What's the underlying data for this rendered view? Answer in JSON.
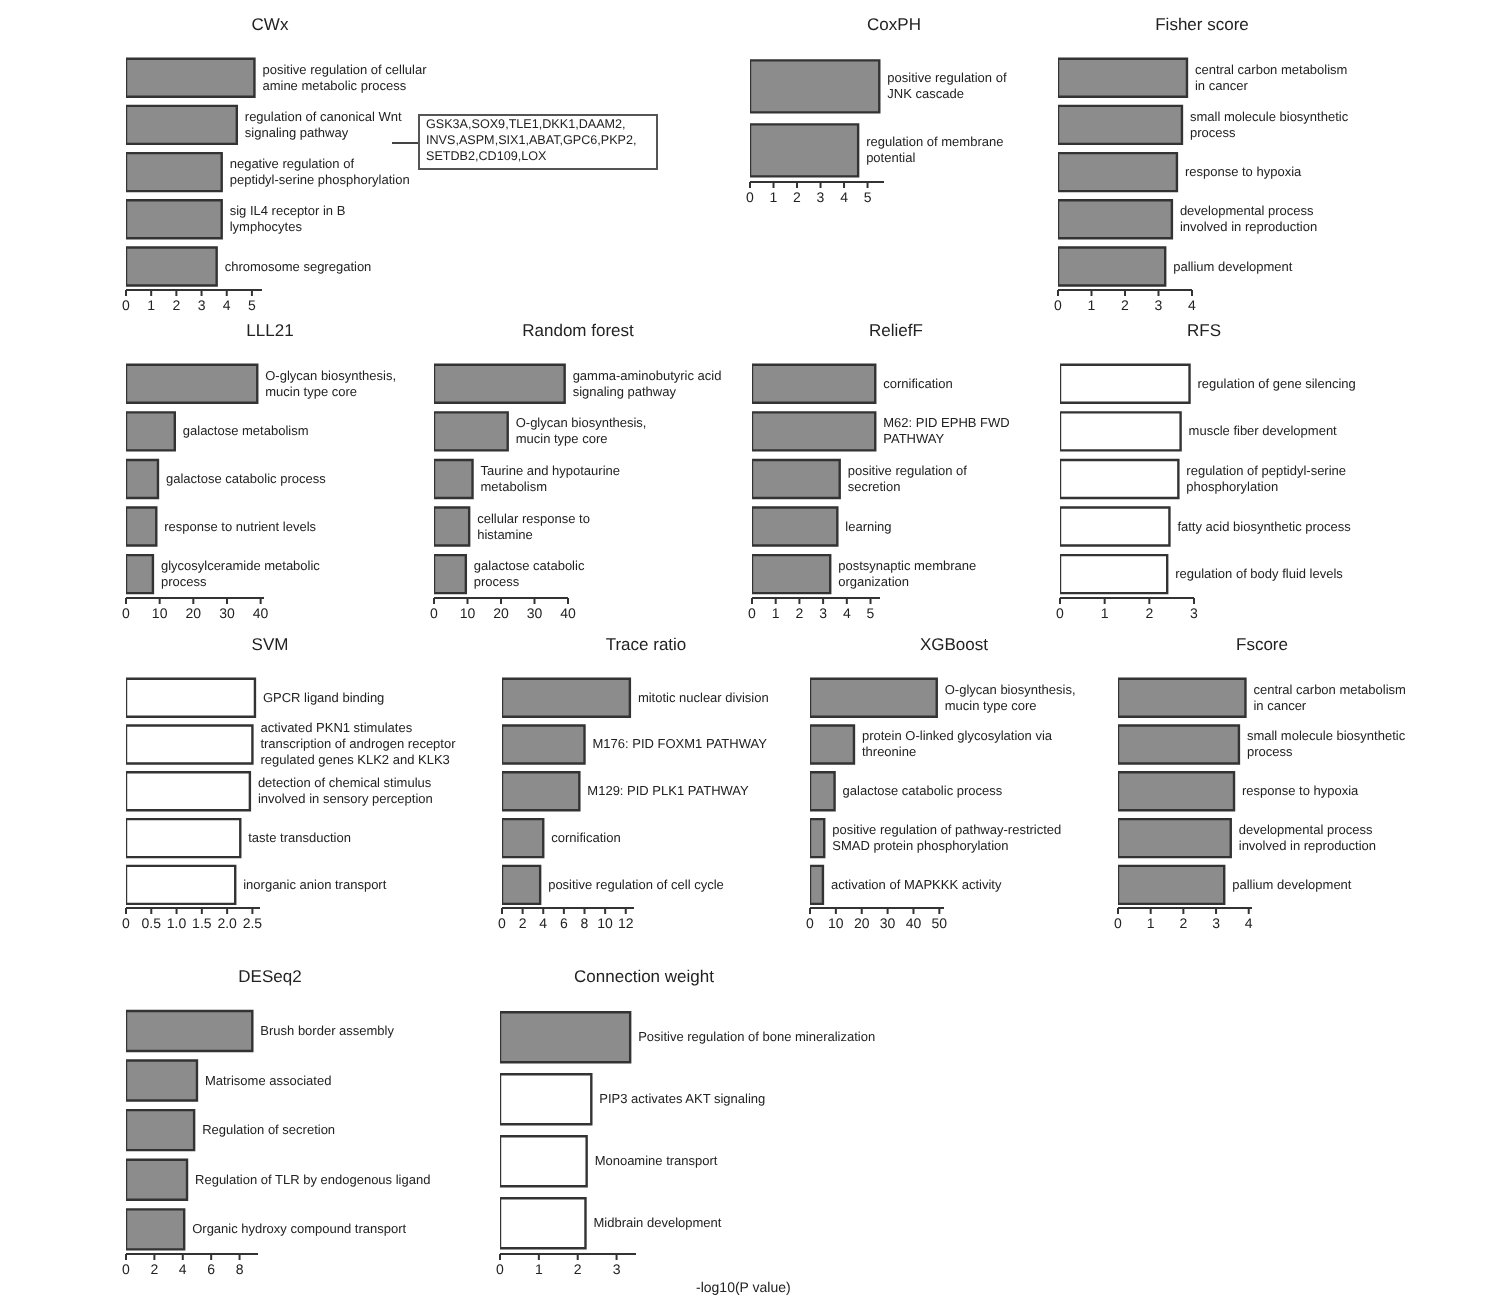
{
  "chart_data": [
    {
      "type": "bar",
      "orientation": "horizontal",
      "title": "CWx",
      "categories": [
        "positive regulation of cellular amine metabolic process",
        "regulation of canonical Wnt signaling pathway",
        "negative regulation of peptidyl-serine phosphorylation",
        "sig IL4 receptor in B lymphocytes",
        "chromosome segregation"
      ],
      "values": [
        5.1,
        4.4,
        3.8,
        3.8,
        3.6
      ],
      "color": "#8c8c8c",
      "xlim": [
        0,
        5.4
      ],
      "xticks": [
        0,
        1,
        2,
        3,
        4,
        5
      ],
      "tick_labels": "x",
      "annotations": [
        "GSK3A,SOX9,TLE1,DKK1,DAAM2,INVS,ASPM,SIX1,ABAT,GPC6,PKP2,SETDB2,CD109,LOX"
      ]
    },
    {
      "type": "bar",
      "orientation": "horizontal",
      "title": "CoxPH",
      "categories": [
        "positive regulation of JNK cascade",
        "regulation of membrane potential"
      ],
      "values": [
        5.5,
        4.6
      ],
      "color": "#8c8c8c",
      "xlim": [
        0,
        5.7
      ],
      "xticks": [
        0,
        1,
        2,
        3,
        4,
        5
      ],
      "tick_labels": "x"
    },
    {
      "type": "bar",
      "orientation": "horizontal",
      "title": "Fisher score",
      "categories": [
        "central carbon metabolism in cancer",
        "small molecule biosynthetic process",
        "response to hypoxia",
        "developmental process involved in reproduction",
        "pallium development"
      ],
      "values": [
        3.85,
        3.7,
        3.55,
        3.4,
        3.2
      ],
      "color": "#8c8c8c",
      "xlim": [
        0,
        4
      ],
      "xticks": [
        0,
        1,
        2,
        3,
        4
      ],
      "tick_labels": "x"
    },
    {
      "type": "bar",
      "orientation": "horizontal",
      "title": "LLL21",
      "categories": [
        "O-glycan biosynthesis, mucin type core",
        "galactose metabolism",
        "galactose catabolic process",
        "response to nutrient levels",
        "glycosylceramide metabolic process"
      ],
      "values": [
        39,
        14.5,
        9.5,
        9,
        8
      ],
      "color": "#8c8c8c",
      "xlim": [
        0,
        41
      ],
      "xticks": [
        0,
        10,
        20,
        30,
        40
      ],
      "tick_labels": "x"
    },
    {
      "type": "bar",
      "orientation": "horizontal",
      "title": "Random forest",
      "categories": [
        "gamma-aminobutyric acid signaling pathway",
        "O-glycan biosynthesis, mucin type core",
        "Taurine and hypotaurine metabolism",
        "cellular response to histamine",
        "galactose catabolic process"
      ],
      "values": [
        39,
        22,
        11.5,
        10.5,
        9.5
      ],
      "color": "#8c8c8c",
      "xlim": [
        0,
        40
      ],
      "xticks": [
        0,
        10,
        20,
        30,
        40
      ],
      "tick_labels": "x"
    },
    {
      "type": "bar",
      "orientation": "horizontal",
      "title": "ReliefF",
      "categories": [
        "cornification",
        "M62: PID EPHB FWD PATHWAY",
        "positive regulation of secretion",
        "learning",
        "postsynaptic membrane organization"
      ],
      "values": [
        5.2,
        5.2,
        3.7,
        3.6,
        3.3
      ],
      "color": "#8c8c8c",
      "xlim": [
        0,
        5.4
      ],
      "xticks": [
        0,
        1,
        2,
        3,
        4,
        5
      ],
      "tick_labels": "x"
    },
    {
      "type": "bar",
      "orientation": "horizontal",
      "title": "RFS",
      "categories": [
        "regulation of gene silencing",
        "muscle fiber development",
        "regulation of peptidyl-serine phosphorylation",
        "fatty acid biosynthetic process",
        "regulation of body fluid levels"
      ],
      "values": [
        2.9,
        2.7,
        2.65,
        2.45,
        2.4
      ],
      "color": "#ffffff",
      "xlim": [
        0,
        3
      ],
      "xticks": [
        0,
        1,
        2,
        3
      ],
      "tick_labels": "x"
    },
    {
      "type": "bar",
      "orientation": "horizontal",
      "title": "SVM",
      "categories": [
        "GPCR ligand binding",
        "activated PKN1 stimulates transcription of androgen receptor regulated genes KLK2 and KLK3",
        "detection of chemical stimulus involved in sensory perception",
        "taste transduction",
        "inorganic anion transport"
      ],
      "values": [
        2.55,
        2.5,
        2.45,
        2.26,
        2.16
      ],
      "color": "#ffffff",
      "xlim": [
        0,
        2.65
      ],
      "xticks": [
        0,
        0.5,
        {
          "value": 1,
          "label": "1.0"
        },
        1.5,
        {
          "value": 2,
          "label": "2.0"
        },
        2.5
      ],
      "tick_labels": "x"
    },
    {
      "type": "bar",
      "orientation": "horizontal",
      "title": "Trace ratio",
      "categories": [
        "mitotic nuclear division",
        "M176: PID FOXM1 PATHWAY",
        "M129: PID PLK1 PATHWAY",
        "cornification",
        "positive regulation of cell cycle"
      ],
      "values": [
        12.4,
        8.0,
        7.5,
        4.0,
        3.7
      ],
      "color": "#8c8c8c",
      "xlim": [
        0,
        12.8
      ],
      "xticks": [
        0,
        2,
        4,
        6,
        8,
        10,
        12
      ],
      "tick_labels": "x"
    },
    {
      "type": "bar",
      "orientation": "horizontal",
      "title": "XGBoost",
      "categories": [
        "O-glycan biosynthesis, mucin type core",
        "protein O-linked glycosylation via threonine",
        "galactose catabolic process",
        "positive regulation of pathway-restricted SMAD protein phosphorylation",
        "activation of MAPKKK activity"
      ],
      "values": [
        49,
        17,
        9.5,
        5.5,
        5
      ],
      "color": "#8c8c8c",
      "xlim": [
        0,
        51.8
      ],
      "xticks": [
        0,
        10,
        20,
        30,
        40,
        50
      ],
      "tick_labels": "x"
    },
    {
      "type": "bar",
      "orientation": "horizontal",
      "title": "Fscore",
      "categories": [
        "central carbon metabolism in cancer",
        "small molecule biosynthetic process",
        "response to hypoxia",
        "developmental process involved in reproduction",
        "pallium development"
      ],
      "values": [
        3.9,
        3.7,
        3.55,
        3.45,
        3.25
      ],
      "color": "#8c8c8c",
      "xlim": [
        0,
        4.1
      ],
      "xticks": [
        0,
        1,
        2,
        3,
        4
      ],
      "tick_labels": "x"
    },
    {
      "type": "bar",
      "orientation": "horizontal",
      "title": "DESeq2",
      "categories": [
        "Brush border assembly",
        "Matrisome associated",
        "Regulation of secretion",
        "Regulation of TLR by endogenous ligand",
        "Organic hydroxy compound transport"
      ],
      "values": [
        8.9,
        5.0,
        4.8,
        4.3,
        4.1
      ],
      "color": "#8c8c8c",
      "xlim": [
        0,
        9.3
      ],
      "xticks": [
        0,
        2,
        4,
        6,
        8
      ],
      "tick_labels": "x"
    },
    {
      "type": "bar",
      "orientation": "horizontal",
      "title": "Connection weight",
      "categories": [
        "Positive regulation of bone mineralization",
        "PIP3 activates AKT signaling",
        "Monoamine transport",
        "Midbrain development"
      ],
      "values": [
        3.35,
        2.35,
        2.23,
        2.2
      ],
      "colors": [
        "#8c8c8c",
        "#ffffff",
        "#ffffff",
        "#ffffff"
      ],
      "xlim": [
        0,
        3.5
      ],
      "xticks": [
        0,
        1,
        2,
        3
      ],
      "tick_labels": "x",
      "xlabel": "-log10(P value)"
    }
  ]
}
